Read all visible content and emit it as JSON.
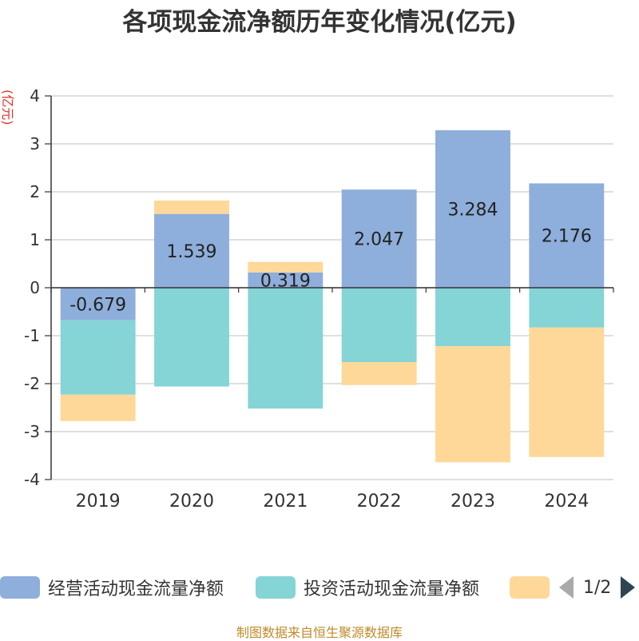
{
  "title": "各项现金流净额历年变化情况(亿元)",
  "footer": "制图数据来自恒生聚源数据库",
  "legend": {
    "pager_text": "1/2"
  },
  "chart_data": {
    "type": "bar",
    "stacked": true,
    "ylabel": "(亿元)",
    "categories": [
      "2019",
      "2020",
      "2021",
      "2022",
      "2023",
      "2024"
    ],
    "ylim": [
      -4,
      4
    ],
    "yticks": [
      "4",
      "3",
      "2",
      "1",
      "0",
      "-1",
      "-2",
      "-3",
      "-4"
    ],
    "grid": true,
    "legend_position": "bottom",
    "series": [
      {
        "name": "经营活动现金流量净额",
        "color": "#8eaedb",
        "values": [
          -0.679,
          1.539,
          0.319,
          2.047,
          3.284,
          2.176
        ],
        "labels": [
          "-0.679",
          "1.539",
          "0.319",
          "2.047",
          "3.284",
          "2.176"
        ]
      },
      {
        "name": "投资活动现金流量净额",
        "color": "#85d4d6",
        "values": [
          -1.55,
          -2.06,
          -2.52,
          -1.55,
          -1.22,
          -0.83
        ],
        "labels": []
      },
      {
        "name": "",
        "color": "#fdd898",
        "values": [
          -0.55,
          0.28,
          0.22,
          -0.48,
          -2.42,
          -2.7
        ],
        "labels": []
      }
    ]
  }
}
